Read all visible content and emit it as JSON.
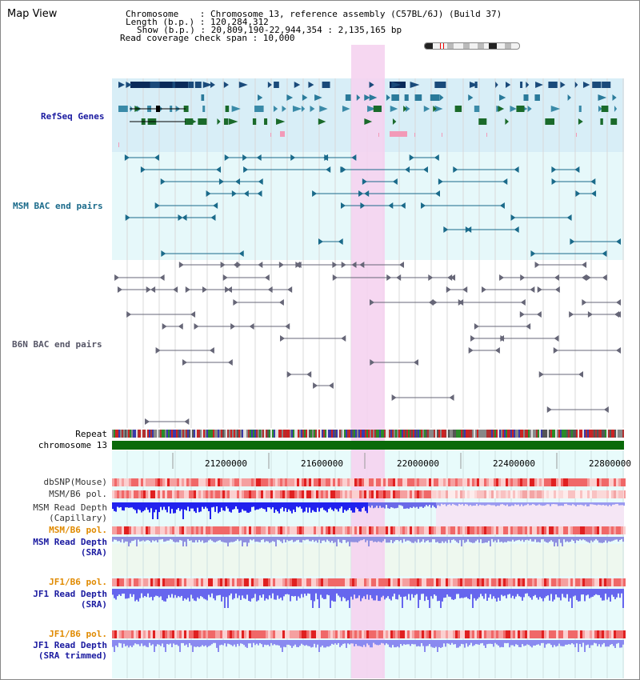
{
  "title": "Map View",
  "header": {
    "chromosome_line": "Chromosome    : Chromosome 13, reference assembly (C57BL/6J) (Build 37)",
    "length_line": "Length (b.p.) : 120,284,312",
    "show_line": "Show (b.p.) : 20,809,190-22,944,354 : 2,135,165 bp",
    "coverage_line": "Read coverage check span : 10,000"
  },
  "tracks": {
    "refseq": "RefSeq Genes",
    "msm_bac": "MSM BAC end pairs",
    "b6n_bac": "B6N BAC end pairs",
    "repeat": "Repeat",
    "chromosome": "chromosome 13",
    "dbsnp": "dbSNP(Mouse)",
    "msm_b6_pol_1": "MSM/B6 pol.",
    "msm_read_depth_cap_1": "MSM Read Depth",
    "msm_read_depth_cap_2": "(Capillary)",
    "msm_b6_pol_2": "MSM/B6 pol.",
    "msm_read_depth_sra_1": "MSM Read Depth",
    "msm_read_depth_sra_2": "(SRA)",
    "jf1_b6_pol_1": "JF1/B6 pol.",
    "jf1_read_depth_sra_1": "JF1 Read Depth",
    "jf1_read_depth_sra_2": "(SRA)",
    "jf1_b6_pol_2": "JF1/B6 pol.",
    "jf1_read_depth_trim_1": "JF1 Read Depth",
    "jf1_read_depth_trim_2": "(SRA trimmed)"
  },
  "axis": {
    "ticks": [
      "21200000",
      "21600000",
      "22000000",
      "22400000",
      "22800000"
    ]
  },
  "colors": {
    "refseq_label": "#1a1aa0",
    "msm_bac_label": "#1a6a8a",
    "b6n_bac_label": "#555566",
    "orange_label": "#e08a00",
    "blue_label": "#1a1aa0",
    "highlight": "#f5d3f0",
    "refseq_band": "#d8eef7",
    "msm_band": "#e6f8fa",
    "cyan_band": "#e8fbfb",
    "depth_blue": "#2222ee",
    "depth_light": "#8888f0",
    "chromosome_bar": "#0a6a0a"
  }
}
